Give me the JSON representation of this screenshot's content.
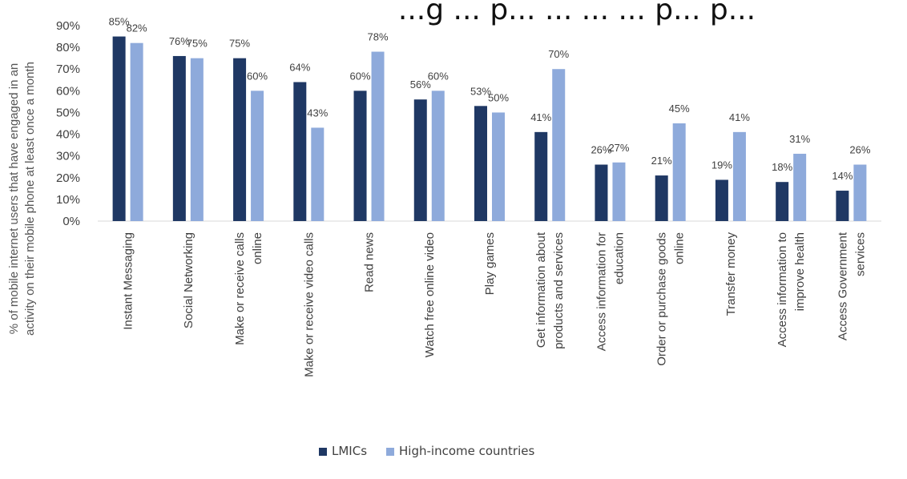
{
  "chart_data": {
    "type": "bar",
    "title": "...g ... p... ... ... ... p... p...",
    "ylabel": "% of mobile internet users that have engaged in an activity on their mobile phone at least once a month",
    "ylabel_lines": [
      "% of mobile internet users that have engaged in an",
      "activity on their mobile phone at least once a month"
    ],
    "ylim": [
      0,
      90
    ],
    "yticks": [
      "0%",
      "10%",
      "20%",
      "30%",
      "40%",
      "50%",
      "60%",
      "70%",
      "80%",
      "90%"
    ],
    "categories": [
      [
        "Instant Messaging"
      ],
      [
        "Social Networking"
      ],
      [
        "Make or receive calls",
        "online"
      ],
      [
        "Make or receive video calls"
      ],
      [
        "Read news"
      ],
      [
        "Watch free online video"
      ],
      [
        "Play games"
      ],
      [
        "Get information about",
        "products and services"
      ],
      [
        "Access information for",
        "education"
      ],
      [
        "Order or purchase goods",
        "online"
      ],
      [
        "Transfer money"
      ],
      [
        "Access information to",
        "improve health"
      ],
      [
        "Access Government",
        "services"
      ]
    ],
    "series": [
      {
        "name": "LMICs",
        "color": "#1f3864",
        "values": [
          85,
          76,
          75,
          64,
          60,
          56,
          53,
          41,
          26,
          21,
          19,
          18,
          14
        ]
      },
      {
        "name": "High-income countries",
        "color": "#8eaadb",
        "values": [
          82,
          75,
          60,
          43,
          78,
          60,
          50,
          70,
          27,
          45,
          41,
          31,
          26
        ]
      }
    ],
    "legend_position": "bottom",
    "grid": false
  }
}
